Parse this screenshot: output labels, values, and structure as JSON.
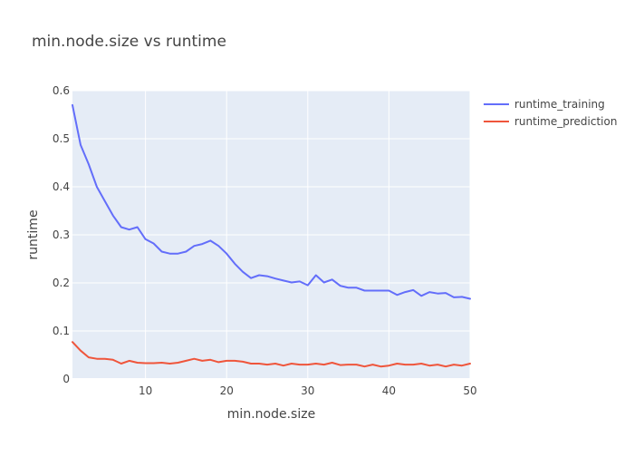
{
  "chart_data": {
    "type": "line",
    "title": "min.node.size vs runtime",
    "xlabel": "min.node.size",
    "ylabel": "runtime",
    "xlim": [
      1,
      50
    ],
    "ylim": [
      0,
      0.6
    ],
    "x_ticks": [
      10,
      20,
      30,
      40,
      50
    ],
    "y_ticks": [
      0,
      0.1,
      0.2,
      0.3,
      0.4,
      0.5,
      0.6
    ],
    "y_tick_labels": [
      "0",
      "0.1",
      "0.2",
      "0.3",
      "0.4",
      "0.5",
      "0.6"
    ],
    "grid": true,
    "legend_position": "top-right",
    "x": [
      1,
      2,
      3,
      4,
      5,
      6,
      7,
      8,
      9,
      10,
      11,
      12,
      13,
      14,
      15,
      16,
      17,
      18,
      19,
      20,
      21,
      22,
      23,
      24,
      25,
      26,
      27,
      28,
      29,
      30,
      31,
      32,
      33,
      34,
      35,
      36,
      37,
      38,
      39,
      40,
      41,
      42,
      43,
      44,
      45,
      46,
      47,
      48,
      49,
      50
    ],
    "series": [
      {
        "name": "runtime_training",
        "color": "#636efa",
        "values": [
          0.57,
          0.487,
          0.447,
          0.4,
          0.37,
          0.34,
          0.316,
          0.311,
          0.316,
          0.291,
          0.282,
          0.265,
          0.261,
          0.261,
          0.265,
          0.277,
          0.281,
          0.288,
          0.277,
          0.261,
          0.24,
          0.223,
          0.21,
          0.216,
          0.214,
          0.209,
          0.205,
          0.201,
          0.203,
          0.195,
          0.216,
          0.201,
          0.207,
          0.194,
          0.19,
          0.19,
          0.184,
          0.184,
          0.184,
          0.184,
          0.175,
          0.181,
          0.185,
          0.173,
          0.181,
          0.178,
          0.179,
          0.17,
          0.171,
          0.167
        ]
      },
      {
        "name": "runtime_prediction",
        "color": "#ef553b",
        "values": [
          0.077,
          0.059,
          0.045,
          0.042,
          0.042,
          0.04,
          0.032,
          0.038,
          0.034,
          0.033,
          0.033,
          0.034,
          0.032,
          0.034,
          0.038,
          0.042,
          0.038,
          0.04,
          0.035,
          0.038,
          0.038,
          0.036,
          0.032,
          0.032,
          0.03,
          0.032,
          0.028,
          0.032,
          0.03,
          0.03,
          0.032,
          0.03,
          0.034,
          0.029,
          0.03,
          0.03,
          0.026,
          0.03,
          0.026,
          0.028,
          0.032,
          0.03,
          0.03,
          0.032,
          0.028,
          0.03,
          0.026,
          0.03,
          0.028,
          0.032
        ]
      }
    ]
  }
}
